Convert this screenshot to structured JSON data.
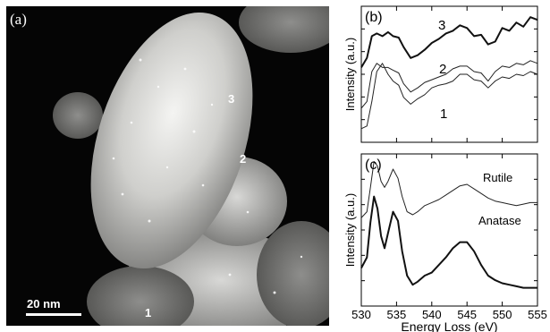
{
  "micrograph": {
    "panel_label": "(a)",
    "scale_bar": "20 nm",
    "point_labels": [
      "3",
      "2",
      "1"
    ]
  },
  "chart_data": [
    {
      "type": "line",
      "panel_label": "(b)",
      "ylabel": "Intensity (a.u.)",
      "xlim": [
        530,
        555
      ],
      "x_ticks": [
        530,
        535,
        540,
        545,
        550,
        555
      ],
      "series_labels": [
        "3",
        "2",
        "1"
      ],
      "series": [
        {
          "label": "3",
          "x": [
            530,
            530.8,
            531.5,
            532.2,
            533,
            533.8,
            534.5,
            535.3,
            536,
            537,
            538,
            539,
            540,
            541,
            542,
            543,
            544,
            545,
            546,
            547,
            548,
            549,
            550,
            551,
            552,
            553,
            554,
            555
          ],
          "y": [
            0.55,
            0.62,
            0.78,
            0.8,
            0.78,
            0.81,
            0.78,
            0.77,
            0.7,
            0.62,
            0.64,
            0.68,
            0.73,
            0.76,
            0.8,
            0.82,
            0.86,
            0.84,
            0.78,
            0.79,
            0.72,
            0.74,
            0.84,
            0.82,
            0.88,
            0.85,
            0.92,
            0.9
          ]
        },
        {
          "label": "2",
          "x": [
            530,
            530.8,
            531.5,
            532.2,
            533,
            533.8,
            534.5,
            535.3,
            536,
            537,
            538,
            539,
            540,
            541,
            542,
            543,
            544,
            545,
            546,
            547,
            548,
            549,
            550,
            551,
            552,
            553,
            554,
            555
          ],
          "y": [
            0.25,
            0.3,
            0.52,
            0.58,
            0.55,
            0.55,
            0.53,
            0.51,
            0.43,
            0.37,
            0.4,
            0.44,
            0.46,
            0.48,
            0.5,
            0.54,
            0.56,
            0.56,
            0.52,
            0.51,
            0.45,
            0.52,
            0.56,
            0.55,
            0.58,
            0.57,
            0.6,
            0.58
          ]
        },
        {
          "label": "1",
          "x": [
            530,
            530.8,
            531.5,
            532.2,
            533,
            533.8,
            534.5,
            535.3,
            536,
            537,
            538,
            539,
            540,
            541,
            542,
            543,
            544,
            545,
            546,
            547,
            548,
            549,
            550,
            551,
            552,
            553,
            554,
            555
          ],
          "y": [
            0.1,
            0.12,
            0.3,
            0.52,
            0.58,
            0.5,
            0.45,
            0.42,
            0.33,
            0.28,
            0.32,
            0.35,
            0.4,
            0.42,
            0.43,
            0.45,
            0.5,
            0.5,
            0.46,
            0.45,
            0.4,
            0.45,
            0.48,
            0.47,
            0.5,
            0.49,
            0.52,
            0.5
          ]
        }
      ]
    },
    {
      "type": "line",
      "panel_label": "(c)",
      "xlabel": "Energy Loss (eV)",
      "ylabel": "Intensity (a.u.)",
      "xlim": [
        530,
        555
      ],
      "x_ticks": [
        530,
        535,
        540,
        545,
        550,
        555
      ],
      "x_tick_labels": [
        "530",
        "535",
        "540",
        "545",
        "550",
        "555"
      ],
      "series": [
        {
          "name": "Rutile",
          "x": [
            530,
            530.8,
            531.3,
            531.8,
            532.3,
            532.8,
            533.3,
            533.8,
            534.5,
            535.2,
            535.8,
            536.5,
            537.3,
            538,
            539,
            540,
            541,
            542,
            543,
            544,
            545,
            546,
            547,
            548,
            549,
            550,
            551,
            552,
            553,
            554,
            555
          ],
          "y": [
            0.58,
            0.62,
            0.78,
            0.95,
            0.92,
            0.82,
            0.78,
            0.82,
            0.9,
            0.84,
            0.72,
            0.62,
            0.6,
            0.62,
            0.66,
            0.68,
            0.7,
            0.73,
            0.76,
            0.79,
            0.8,
            0.77,
            0.74,
            0.71,
            0.69,
            0.68,
            0.67,
            0.66,
            0.67,
            0.68,
            0.68
          ]
        },
        {
          "name": "Anatase",
          "x": [
            530,
            530.8,
            531.3,
            531.8,
            532.3,
            532.8,
            533.3,
            533.8,
            534.5,
            535.2,
            535.8,
            536.5,
            537.3,
            538,
            539,
            540,
            541,
            542,
            543,
            544,
            545,
            546,
            547,
            548,
            549,
            550,
            551,
            552,
            553,
            554,
            555
          ],
          "y": [
            0.25,
            0.32,
            0.55,
            0.72,
            0.64,
            0.46,
            0.38,
            0.48,
            0.62,
            0.56,
            0.36,
            0.2,
            0.14,
            0.16,
            0.2,
            0.22,
            0.27,
            0.32,
            0.38,
            0.42,
            0.42,
            0.36,
            0.27,
            0.2,
            0.17,
            0.15,
            0.14,
            0.13,
            0.12,
            0.12,
            0.12
          ]
        }
      ]
    }
  ],
  "colors": {
    "axis": "#000000",
    "series_thick": "#111111",
    "series_thin": "#222222",
    "micro_background": "#050505"
  }
}
